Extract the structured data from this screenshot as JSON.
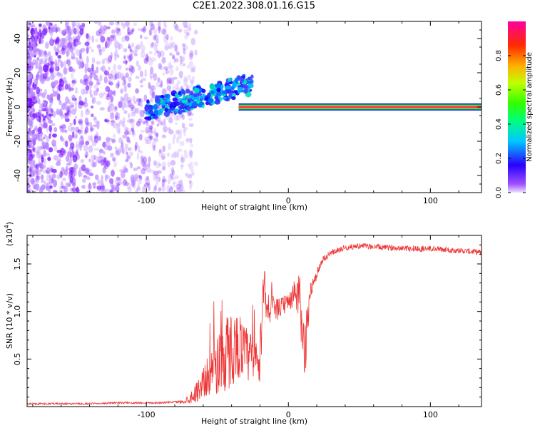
{
  "title": "C2E1.2022.308.01.16.G15",
  "colors": {
    "scatter_purple": "#7a12ff",
    "line_red": "#ee3434",
    "band_green": "#22cc44",
    "band_red": "#ff2244"
  },
  "chart_data": [
    {
      "type": "heatmap",
      "xlabel": "Height of straight line (km)",
      "ylabel": "Frequency (Hz)",
      "xlim": [
        -184,
        136
      ],
      "ylim": [
        -50,
        50
      ],
      "x_ticks": [
        -100,
        0,
        100
      ],
      "x_tick_labels": [
        "-100",
        "0",
        "100"
      ],
      "y_ticks": [
        40,
        20,
        0,
        -20,
        -40
      ],
      "y_tick_labels": [
        "40",
        "20",
        "0",
        "-20",
        "-40"
      ],
      "grid": false,
      "colorbar": {
        "label": "Normalized spectral amplitude",
        "range": [
          0.0,
          1.0
        ],
        "ticks": [
          0.0,
          0.2,
          0.4,
          0.6,
          0.8
        ],
        "tick_labels": [
          "0.0",
          "0.2",
          "0.4",
          "0.6",
          "0.8"
        ],
        "colormap": "rainbow"
      },
      "features": {
        "noise_region_km": [
          -184,
          -75
        ],
        "diagonal_feature_km": [
          -100,
          -25
        ],
        "diagonal_feature_freq_hz": [
          -8,
          12
        ],
        "carrier_start_km": -35,
        "carrier_freq_hz": 0,
        "carrier_amplitude": 0.9
      }
    },
    {
      "type": "line",
      "xlabel": "Height of straight line (km)",
      "ylabel": "SNR (10 * v/v)",
      "y_multiplier_label": "(x10",
      "y_multiplier_exponent": "4",
      "y_multiplier_close": ")",
      "xlim": [
        -184,
        136
      ],
      "ylim": [
        0,
        1.8
      ],
      "x_ticks": [
        -100,
        0,
        100
      ],
      "x_tick_labels": [
        "-100",
        "0",
        "100"
      ],
      "y_ticks": [
        0.5,
        1.0,
        1.5
      ],
      "y_tick_labels": [
        "0.5",
        "1.0",
        "1.5"
      ],
      "grid": false,
      "series": [
        {
          "x": [
            -184,
            -160,
            -140,
            -120,
            -100,
            -90,
            -80,
            -75,
            -70,
            -65,
            -60,
            -55,
            -50,
            -45,
            -40,
            -35,
            -30,
            -25,
            -20,
            -17,
            -15,
            -12,
            -10,
            -5,
            0,
            5,
            8,
            10,
            12,
            15,
            20,
            25,
            30,
            40,
            50,
            60,
            70,
            80,
            90,
            100,
            110,
            120,
            130,
            136
          ],
          "y": [
            0.03,
            0.03,
            0.03,
            0.04,
            0.04,
            0.04,
            0.05,
            0.05,
            0.08,
            0.15,
            0.25,
            0.35,
            0.45,
            0.55,
            0.6,
            0.65,
            0.55,
            0.5,
            0.45,
            1.4,
            1.0,
            1.1,
            1.0,
            1.05,
            1.1,
            1.2,
            1.1,
            0.7,
            0.6,
            1.2,
            1.4,
            1.55,
            1.62,
            1.67,
            1.69,
            1.68,
            1.67,
            1.67,
            1.66,
            1.66,
            1.65,
            1.64,
            1.63,
            1.62
          ],
          "noise": [
            0.01,
            0.01,
            0.01,
            0.01,
            0.01,
            0.01,
            0.01,
            0.02,
            0.05,
            0.1,
            0.18,
            0.22,
            0.35,
            0.45,
            0.4,
            0.35,
            0.3,
            0.3,
            0.3,
            0.15,
            0.25,
            0.2,
            0.12,
            0.1,
            0.1,
            0.15,
            0.3,
            0.3,
            0.3,
            0.1,
            0.06,
            0.04,
            0.03,
            0.03,
            0.03,
            0.03,
            0.03,
            0.03,
            0.04,
            0.03,
            0.03,
            0.03,
            0.03,
            0.03
          ]
        }
      ]
    }
  ]
}
